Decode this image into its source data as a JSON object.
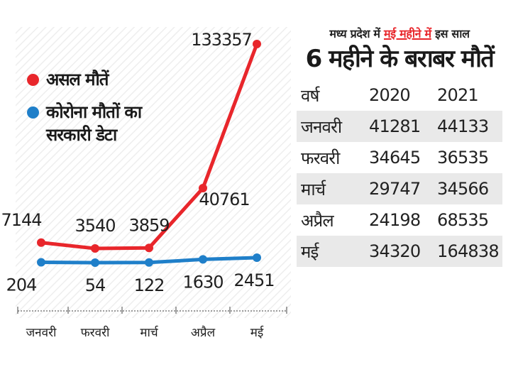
{
  "chart_data": {
    "type": "line",
    "categories": [
      "जनवरी",
      "फरवरी",
      "मार्च",
      "अप्रैल",
      "मई"
    ],
    "series": [
      {
        "name": "असल मौतें",
        "color": "#e8262b",
        "values": [
          7144,
          3540,
          3859,
          40761,
          133357
        ]
      },
      {
        "name": "कोरोना मौतों का सरकारी डेटा",
        "color": "#1f7fc9",
        "values": [
          204,
          54,
          122,
          1630,
          2451
        ]
      }
    ],
    "legend": [
      "असल मौतें",
      "कोरोना मौतों का सरकारी डेटा"
    ],
    "legend_lines": [
      [
        "असल मौतें"
      ],
      [
        "कोरोना मौतों का",
        "सरकारी डेटा"
      ]
    ]
  },
  "table": {
    "subtitle_pre": "मध्य प्रदेश में",
    "subtitle_highlight": "मई महीने में",
    "subtitle_post": "इस साल",
    "title": "6 महीने के बराबर मौतें",
    "header": [
      "वर्ष",
      "2020",
      "2021"
    ],
    "rows": [
      [
        "जनवरी",
        "41281",
        "44133"
      ],
      [
        "फरवरी",
        "34645",
        "36535"
      ],
      [
        "मार्च",
        "29747",
        "34566"
      ],
      [
        "अप्रैल",
        "24198",
        "68535"
      ],
      [
        "मई",
        "34320",
        "164838"
      ]
    ]
  }
}
